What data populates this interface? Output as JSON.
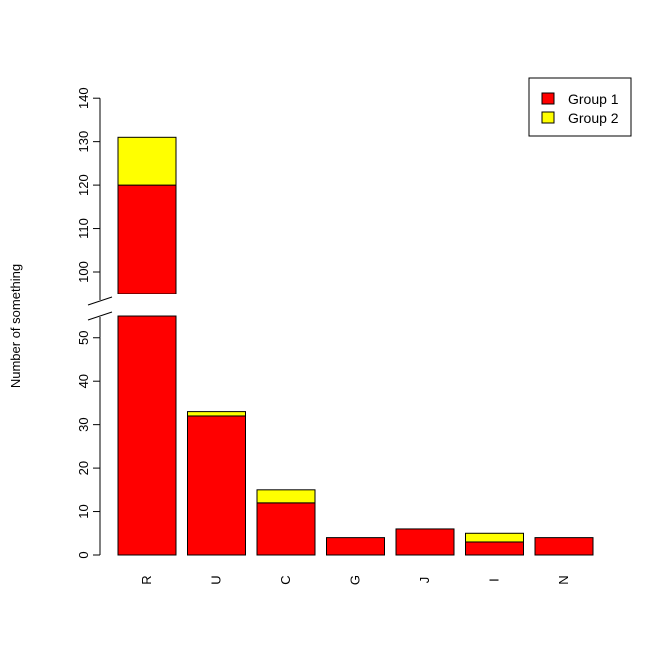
{
  "chart_data": {
    "type": "bar",
    "stacked": true,
    "title": "",
    "xlabel": "",
    "ylabel": "Number of something",
    "categories": [
      "R",
      "U",
      "C",
      "G",
      "J",
      "I",
      "N"
    ],
    "series": [
      {
        "name": "Group 1",
        "color": "#ff0000",
        "values": [
          120,
          32,
          12,
          4,
          6,
          3,
          4
        ]
      },
      {
        "name": "Group 2",
        "color": "#ffff00",
        "values": [
          11,
          1,
          3,
          0,
          0,
          2,
          0
        ]
      }
    ],
    "axis_break": {
      "from": 55,
      "to": 95
    },
    "ylim_lower": [
      0,
      55
    ],
    "ylim_upper": [
      95,
      140
    ],
    "yticks_lower": [
      0,
      10,
      20,
      30,
      40,
      50
    ],
    "yticks_upper": [
      100,
      110,
      120,
      130,
      140
    ],
    "grid": false,
    "legend_position": "top-right"
  }
}
